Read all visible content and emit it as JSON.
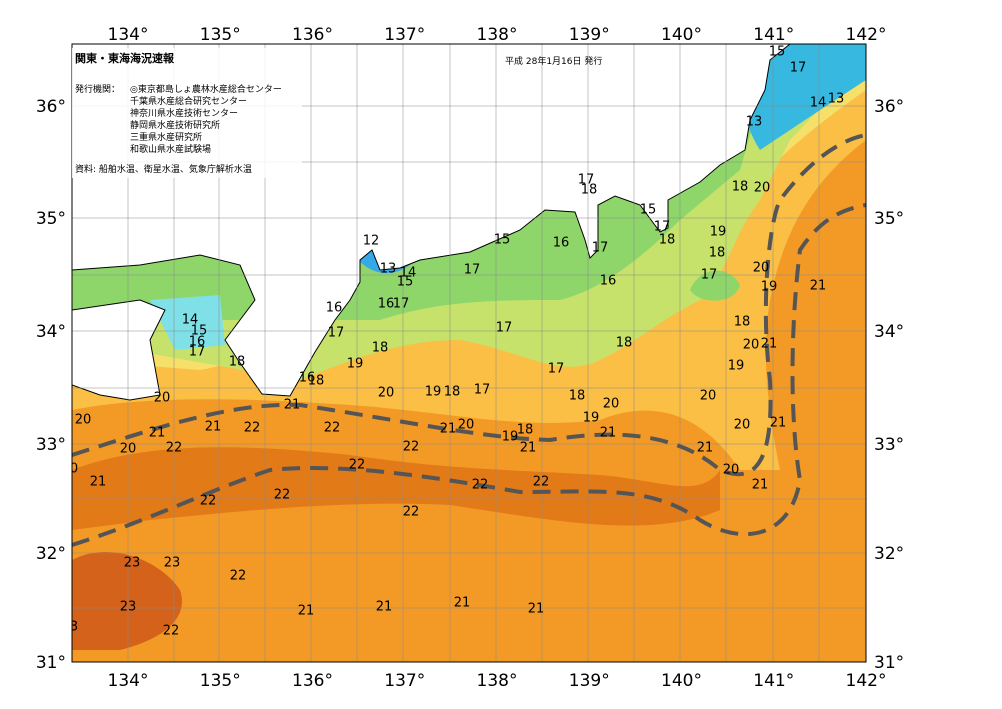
{
  "header": {
    "title": "関東・東海海況速報",
    "date": "平成 28年1月16日 発行"
  },
  "publisher": {
    "label": "発行機関：",
    "organizations": [
      "◎東京都島しょ農林水産総合センター",
      "千葉県水産総合研究センター",
      "神奈川県水産技術センター",
      "静岡県水産技術研究所",
      "三重県水産研究所",
      "和歌山県水産試験場"
    ]
  },
  "source": "資料: 船舶水温、衛星水温、気象庁解析水温",
  "lon_labels": [
    "134°",
    "135°",
    "136°",
    "137°",
    "138°",
    "139°",
    "140°",
    "141°",
    "142°"
  ],
  "lat_labels": [
    "31°",
    "32°",
    "33°",
    "34°",
    "35°",
    "36°"
  ],
  "contour_labels": [
    "15",
    "17",
    "14",
    "13",
    "13",
    "17",
    "18",
    "18",
    "20",
    "15",
    "16",
    "15",
    "17",
    "18",
    "19",
    "18",
    "17",
    "12",
    "13",
    "14",
    "15",
    "17",
    "16",
    "20",
    "17",
    "19",
    "21",
    "16",
    "16",
    "17",
    "14",
    "15",
    "16",
    "17",
    "17",
    "17",
    "18",
    "18",
    "18",
    "18",
    "20",
    "21",
    "19",
    "19",
    "17",
    "16",
    "18",
    "20",
    "19",
    "18",
    "17",
    "18",
    "20",
    "20",
    "19",
    "20",
    "21",
    "20",
    "21",
    "21",
    "22",
    "22",
    "21",
    "20",
    "18",
    "19",
    "21",
    "21",
    "20",
    "21",
    "20",
    "22",
    "22",
    "21",
    "22",
    "20",
    "21",
    "22",
    "22",
    "21",
    "22",
    "22",
    "22",
    "23",
    "23",
    "22",
    "23",
    "21",
    "21",
    "21",
    "21",
    "22",
    "3",
    "0"
  ]
}
